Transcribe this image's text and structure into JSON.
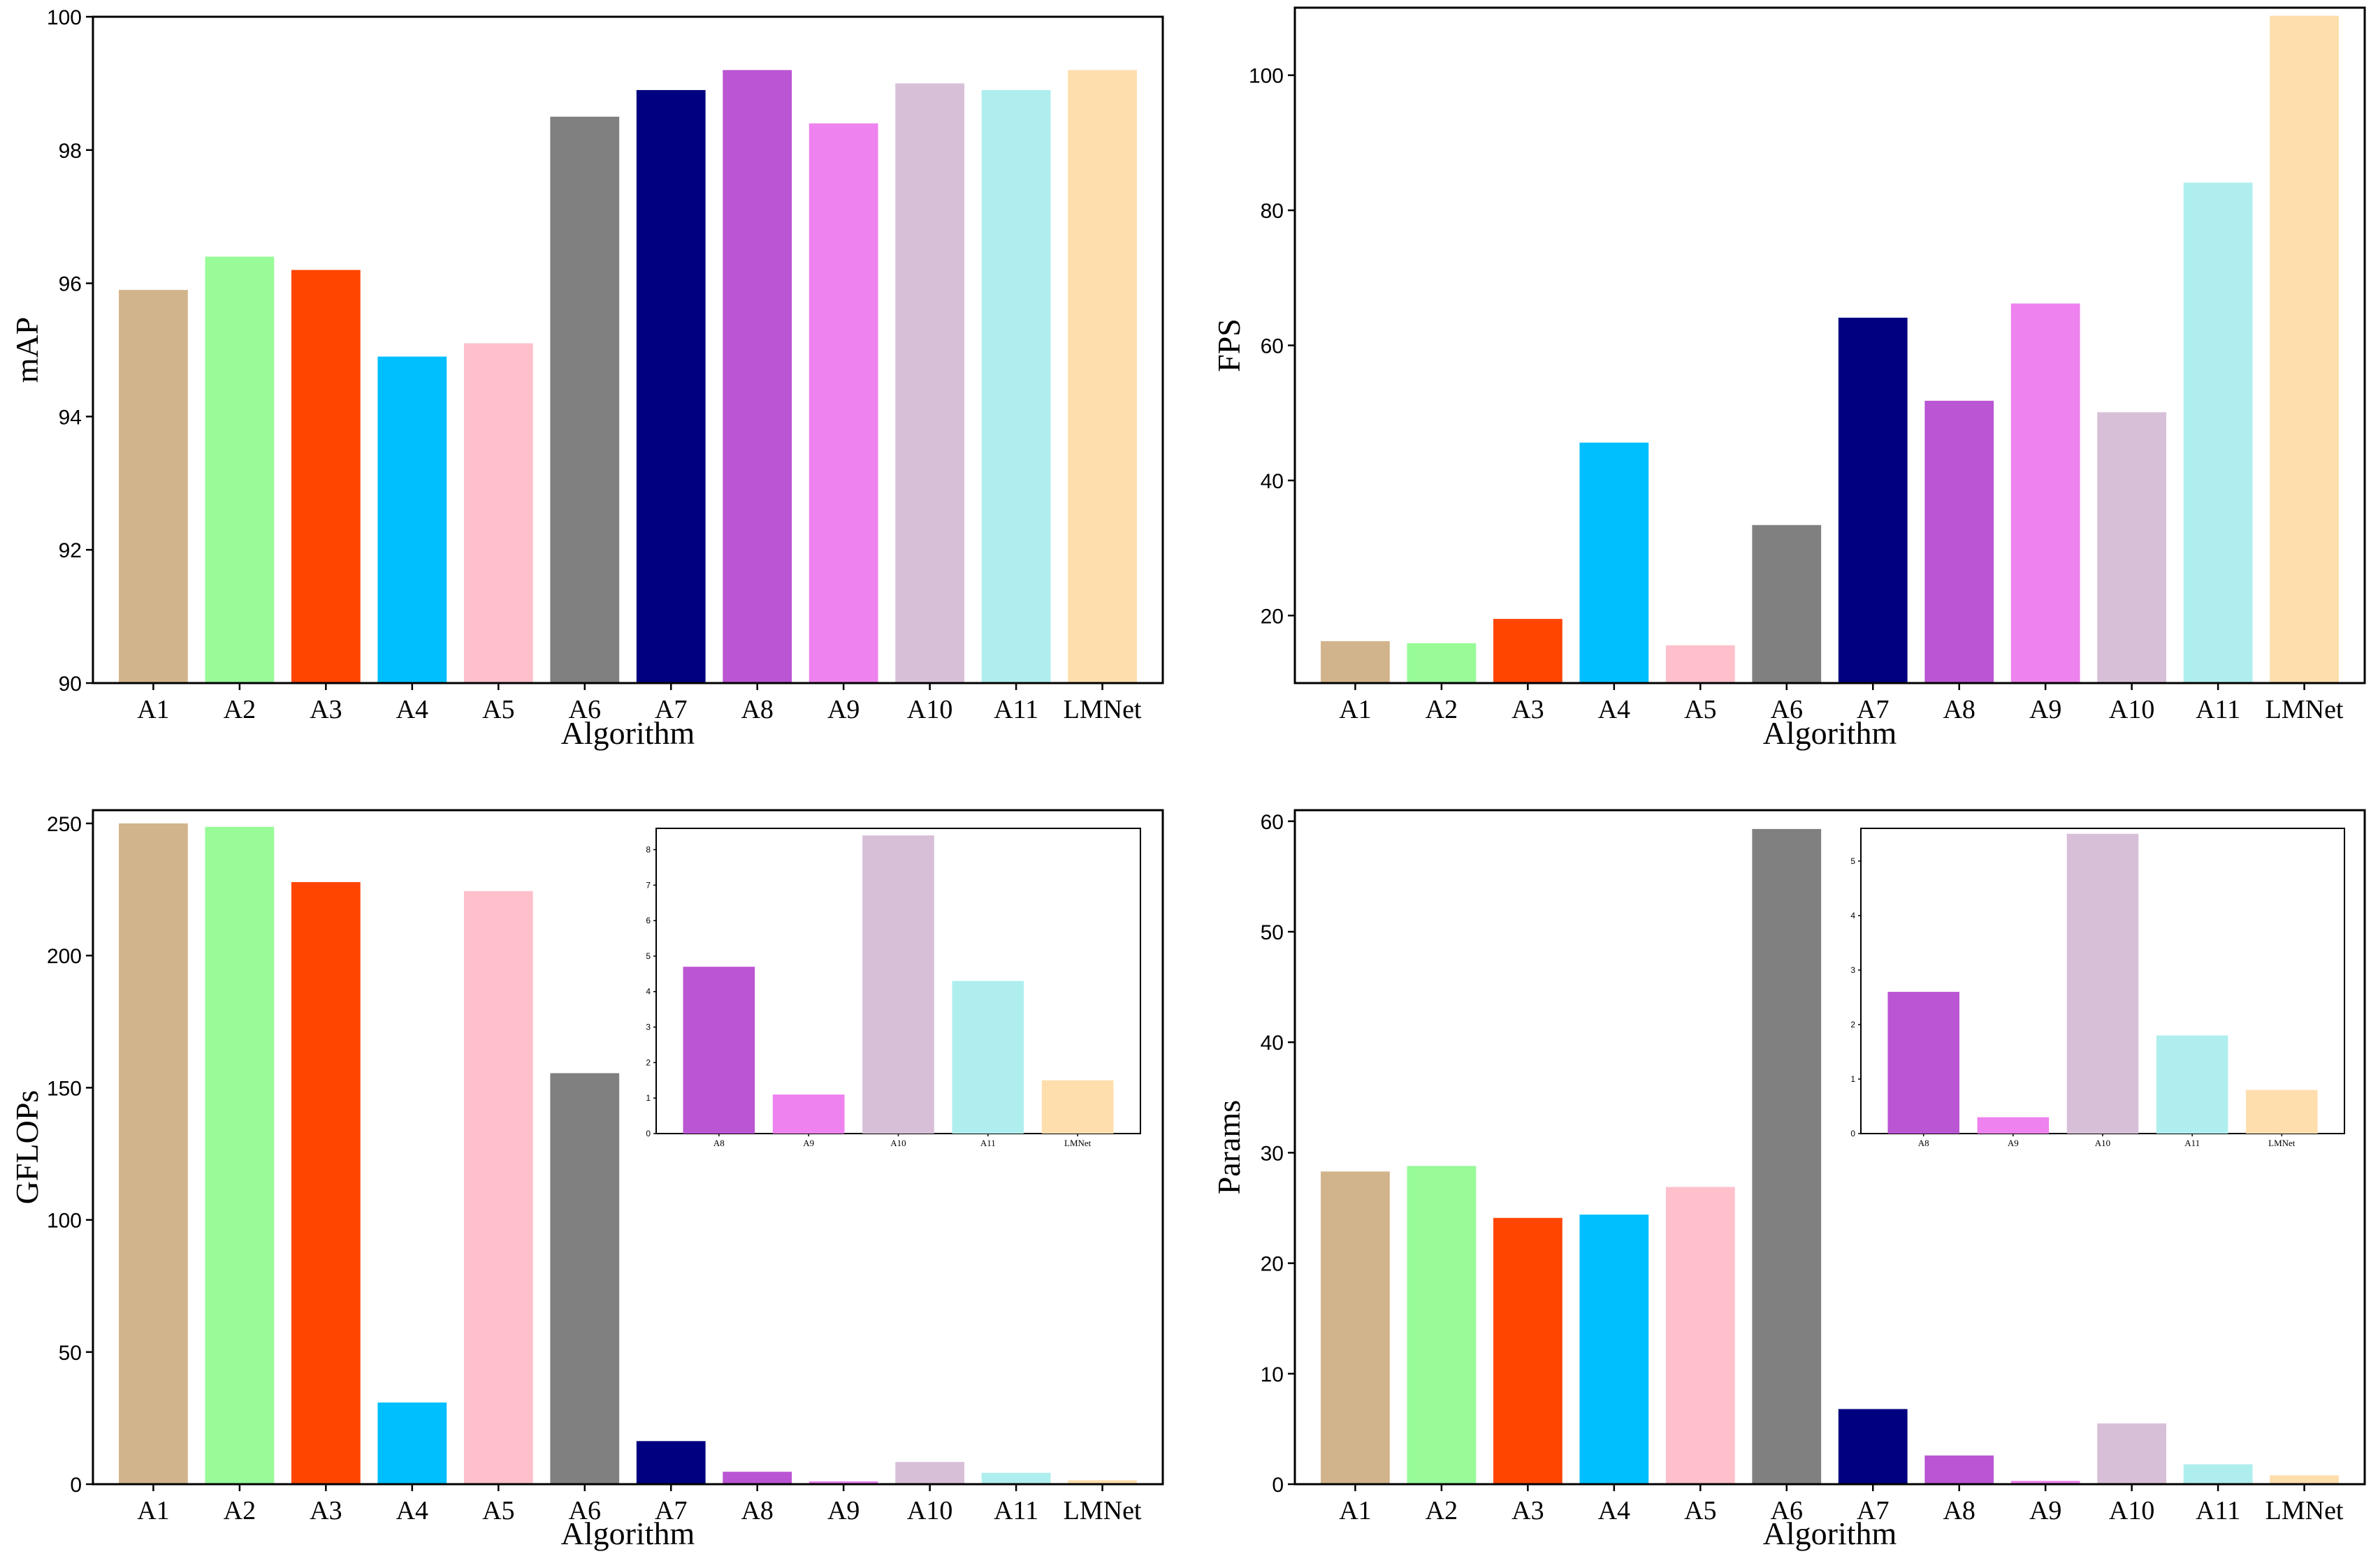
{
  "colors": {
    "A1": "#d2b48c",
    "A2": "#98fb98",
    "A3": "#ff4500",
    "A4": "#00bfff",
    "A5": "#ffc0cb",
    "A6": "#808080",
    "A7": "#000080",
    "A8": "#ba55d3",
    "A9": "#ee82ee",
    "A10": "#d8bfd8",
    "A11": "#afeeee",
    "LMNet": "#ffdead"
  },
  "chart_data": [
    {
      "id": "map",
      "type": "bar",
      "xlabel": "Algorithm",
      "ylabel": "mAP",
      "categories": [
        "A1",
        "A2",
        "A3",
        "A4",
        "A5",
        "A6",
        "A7",
        "A8",
        "A9",
        "A10",
        "A11",
        "LMNet"
      ],
      "values": [
        95.9,
        96.4,
        96.2,
        94.9,
        95.1,
        98.5,
        98.9,
        99.2,
        98.4,
        99.0,
        98.9,
        99.2
      ],
      "ylim": [
        90,
        100
      ],
      "yticks": [
        90,
        92,
        94,
        96,
        98,
        100
      ]
    },
    {
      "id": "fps",
      "type": "bar",
      "xlabel": "Algorithm",
      "ylabel": "FPS",
      "categories": [
        "A1",
        "A2",
        "A3",
        "A4",
        "A5",
        "A6",
        "A7",
        "A8",
        "A9",
        "A10",
        "A11",
        "LMNet"
      ],
      "values": [
        16.2,
        15.9,
        19.5,
        45.6,
        15.6,
        33.4,
        64.1,
        51.8,
        66.2,
        50.1,
        84.1,
        108.8
      ],
      "ylim": [
        10,
        110
      ],
      "yticks": [
        20,
        40,
        60,
        80,
        100
      ]
    },
    {
      "id": "gflops",
      "type": "bar",
      "xlabel": "Algorithm",
      "ylabel": "GFLOPs",
      "categories": [
        "A1",
        "A2",
        "A3",
        "A4",
        "A5",
        "A6",
        "A7",
        "A8",
        "A9",
        "A10",
        "A11",
        "LMNet"
      ],
      "values": [
        250.0,
        248.7,
        227.8,
        30.9,
        224.4,
        155.5,
        16.3,
        4.7,
        1.1,
        8.4,
        4.3,
        1.5
      ],
      "ylim": [
        0,
        255
      ],
      "yticks": [
        0,
        50,
        100,
        150,
        200,
        250
      ],
      "inset": {
        "categories": [
          "A8",
          "A9",
          "A10",
          "A11",
          "LMNet"
        ],
        "values": [
          4.7,
          1.1,
          8.4,
          4.3,
          1.5
        ],
        "ylim": [
          0,
          8.6
        ],
        "yticks": [
          0,
          1,
          2,
          3,
          4,
          5,
          6,
          7,
          8
        ]
      }
    },
    {
      "id": "params",
      "type": "bar",
      "xlabel": "Algorithm",
      "ylabel": "Params",
      "categories": [
        "A1",
        "A2",
        "A3",
        "A4",
        "A5",
        "A6",
        "A7",
        "A8",
        "A9",
        "A10",
        "A11",
        "LMNet"
      ],
      "values": [
        28.3,
        28.8,
        24.1,
        24.4,
        26.9,
        59.3,
        6.8,
        2.6,
        0.3,
        5.5,
        1.8,
        0.8
      ],
      "ylim": [
        0,
        61
      ],
      "yticks": [
        0,
        10,
        20,
        30,
        40,
        50,
        60
      ],
      "inset": {
        "categories": [
          "A8",
          "A9",
          "A10",
          "A11",
          "LMNet"
        ],
        "values": [
          2.6,
          0.3,
          5.5,
          1.8,
          0.8
        ],
        "ylim": [
          0,
          5.6
        ],
        "yticks": [
          0,
          1,
          2,
          3,
          4,
          5
        ]
      }
    }
  ]
}
